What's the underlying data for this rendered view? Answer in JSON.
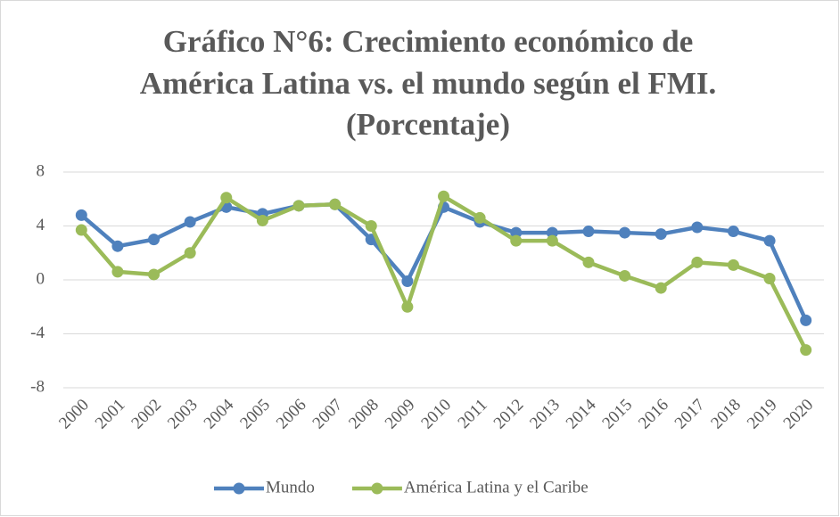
{
  "chart_data": {
    "type": "line",
    "title": [
      "Gráfico N°6: Crecimiento económico de",
      "América Latina vs. el mundo según el FMI.",
      "(Porcentaje)"
    ],
    "categories": [
      "2000",
      "2001",
      "2002",
      "2003",
      "2004",
      "2005",
      "2006",
      "2007",
      "2008",
      "2009",
      "2010",
      "2011",
      "2012",
      "2013",
      "2014",
      "2015",
      "2016",
      "2017",
      "2018",
      "2019",
      "2020"
    ],
    "series": [
      {
        "name": "Mundo",
        "color": "#4f81bd",
        "values": [
          4.8,
          2.5,
          3.0,
          4.3,
          5.4,
          4.9,
          5.5,
          5.6,
          3.0,
          -0.1,
          5.4,
          4.3,
          3.5,
          3.5,
          3.6,
          3.5,
          3.4,
          3.9,
          3.6,
          2.9,
          -3.0
        ]
      },
      {
        "name": "América Latina y el Caribe",
        "color": "#9bbb59",
        "values": [
          3.7,
          0.6,
          0.4,
          2.0,
          6.1,
          4.4,
          5.5,
          5.6,
          4.0,
          -2.0,
          6.2,
          4.6,
          2.9,
          2.9,
          1.3,
          0.3,
          -0.6,
          1.3,
          1.1,
          0.1,
          -5.2
        ]
      }
    ],
    "ylim": [
      -8,
      8
    ],
    "yticks": [
      -8,
      -4,
      0,
      4,
      8
    ],
    "grid": true,
    "legend": "bottom"
  }
}
